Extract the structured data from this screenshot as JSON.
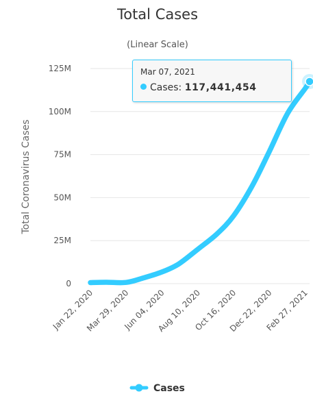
{
  "chart_data": {
    "type": "line",
    "title": "Total Cases",
    "subtitle": "(Linear Scale)",
    "ylabel": "Total Coronavirus Cases",
    "xlabel": "",
    "x_start": "2020-01-22",
    "x_end": "2021-03-07",
    "ylim": [
      0,
      125000000
    ],
    "y_ticks": [
      {
        "value": 0,
        "label": "0"
      },
      {
        "value": 25000000,
        "label": "25M"
      },
      {
        "value": 50000000,
        "label": "50M"
      },
      {
        "value": 75000000,
        "label": "75M"
      },
      {
        "value": 100000000,
        "label": "100M"
      },
      {
        "value": 125000000,
        "label": "125M"
      }
    ],
    "x_ticks": [
      {
        "date": "2020-01-22",
        "label": "Jan 22, 2020"
      },
      {
        "date": "2020-03-29",
        "label": "Mar 29, 2020"
      },
      {
        "date": "2020-06-04",
        "label": "Jun 04, 2020"
      },
      {
        "date": "2020-08-10",
        "label": "Aug 10, 2020"
      },
      {
        "date": "2020-10-16",
        "label": "Oct 16, 2020"
      },
      {
        "date": "2020-12-22",
        "label": "Dec 22, 2020"
      },
      {
        "date": "2021-02-27",
        "label": "Feb 27, 2021"
      }
    ],
    "grid": true,
    "legend_position": "bottom",
    "series": [
      {
        "name": "Cases",
        "color": "#33ccff",
        "points": [
          {
            "date": "2020-01-22",
            "value": 0.6
          },
          {
            "date": "2020-02-20",
            "value": 0.8
          },
          {
            "date": "2020-03-29",
            "value": 0.7
          },
          {
            "date": "2020-05-01",
            "value": 3.4
          },
          {
            "date": "2020-06-04",
            "value": 6.8
          },
          {
            "date": "2020-07-05",
            "value": 11.4
          },
          {
            "date": "2020-08-10",
            "value": 20.0
          },
          {
            "date": "2020-09-15",
            "value": 29.0
          },
          {
            "date": "2020-10-16",
            "value": 39.5
          },
          {
            "date": "2020-11-20",
            "value": 57.0
          },
          {
            "date": "2020-12-22",
            "value": 77.0
          },
          {
            "date": "2021-01-25",
            "value": 99.0
          },
          {
            "date": "2021-02-27",
            "value": 113.5
          },
          {
            "date": "2021-03-07",
            "value": 117.441454
          }
        ],
        "value_unit": "M"
      }
    ],
    "tooltip": {
      "date": "Mar 07, 2021",
      "label": "Cases:",
      "value": "117,441,454"
    }
  },
  "legend": {
    "items": [
      {
        "name": "Cases",
        "color": "#33ccff",
        "icon": "legend-line-marker-icon"
      }
    ]
  }
}
